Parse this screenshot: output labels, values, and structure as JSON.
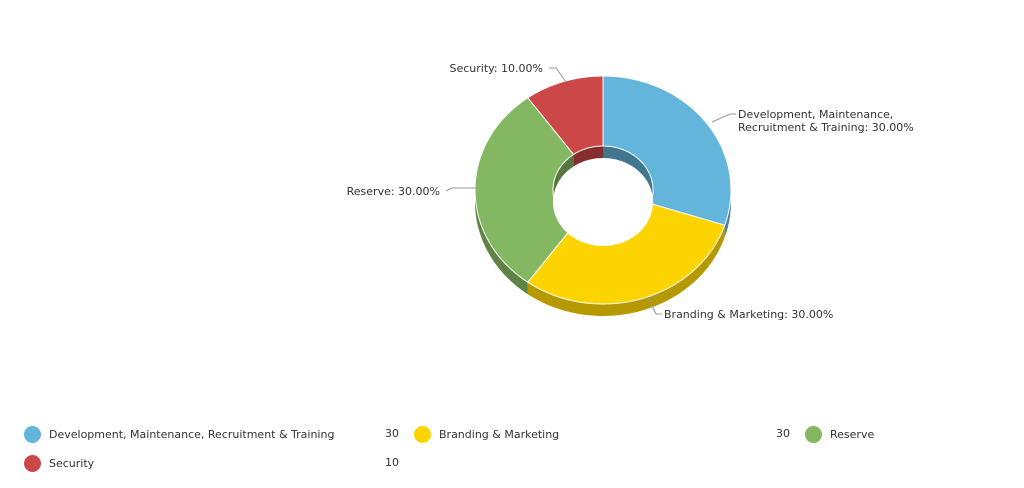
{
  "chart_data": {
    "type": "pie",
    "variant": "donut-3d",
    "slices": [
      {
        "label": "Development, Maintenance, Recruitment & Training",
        "value": 30,
        "percent_label": "Development, Maintenance,\nRecruitment & Training: 30.00%",
        "color": "#64b5dc"
      },
      {
        "label": "Branding & Marketing",
        "value": 30,
        "percent_label": "Branding & Marketing: 30.00%",
        "color": "#fdd400"
      },
      {
        "label": "Reserve",
        "value": 30,
        "percent_label": "Reserve: 30.00%",
        "color": "#84b761"
      },
      {
        "label": "Security",
        "value": 10,
        "percent_label": "Security: 10.00%",
        "color": "#cc4748"
      }
    ],
    "legend_placement": "bottom"
  },
  "legend": {
    "items": [
      {
        "label": "Development, Maintenance, Recruitment & Training",
        "value": "30",
        "color": "#64b5dc"
      },
      {
        "label": "Branding & Marketing",
        "value": "30",
        "color": "#fdd400"
      },
      {
        "label": "Reserve",
        "value": "",
        "color": "#84b761"
      },
      {
        "label": "Security",
        "value": "10",
        "color": "#cc4748"
      }
    ]
  }
}
